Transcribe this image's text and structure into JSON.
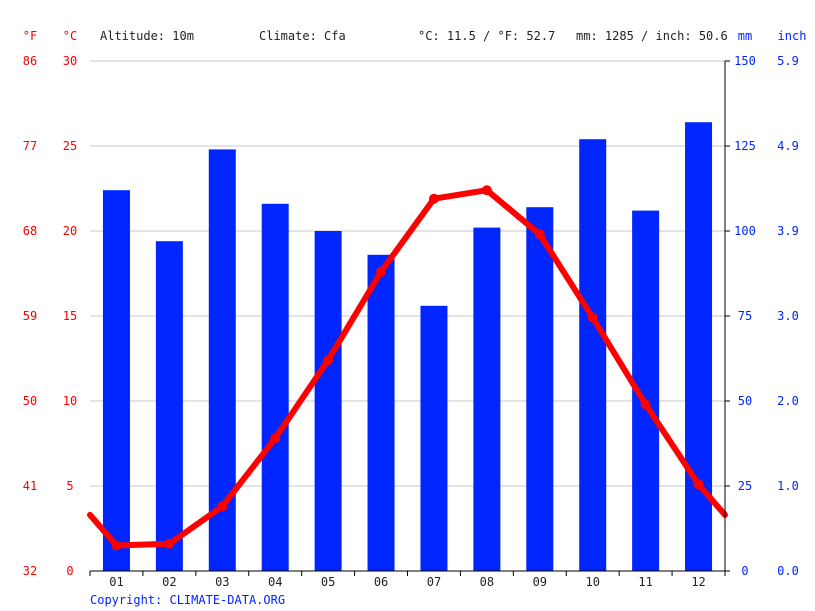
{
  "header": {
    "unit_f": "°F",
    "unit_c": "°C",
    "altitude": "Altitude: 10m",
    "climate": "Climate: Cfa",
    "avg_temp": "°C: 11.5 / °F: 52.7",
    "avg_precip": "mm: 1285 / inch: 50.6",
    "unit_mm": "mm",
    "unit_inch": "inch"
  },
  "footer": {
    "copyright": "Copyright: CLIMATE-DATA.ORG"
  },
  "colors": {
    "temperature": "#ff0000",
    "precipitation": "#0026ff",
    "grid": "#c8c8c8",
    "text": "#222222"
  },
  "chart_data": {
    "type": "bar",
    "categories": [
      "01",
      "02",
      "03",
      "04",
      "05",
      "06",
      "07",
      "08",
      "09",
      "10",
      "11",
      "12"
    ],
    "series": [
      {
        "axis": "right",
        "type": "bar",
        "unit": "mm",
        "values": [
          112,
          97,
          124,
          108,
          100,
          93,
          78,
          101,
          107,
          127,
          106,
          132
        ]
      },
      {
        "axis": "left",
        "type": "line",
        "unit": "°C",
        "values": [
          1.5,
          1.6,
          3.8,
          7.8,
          12.4,
          17.6,
          21.9,
          22.4,
          19.8,
          14.9,
          9.8,
          5.1
        ],
        "line_start": 3.3,
        "line_end": 3.3
      }
    ],
    "y_left_c": {
      "ticks": [
        "0",
        "5",
        "10",
        "15",
        "20",
        "25",
        "30"
      ],
      "ylim": [
        0,
        30
      ]
    },
    "y_left_f": {
      "ticks": [
        "32",
        "41",
        "50",
        "59",
        "68",
        "77",
        "86"
      ]
    },
    "y_right_mm": {
      "ticks": [
        "0",
        "25",
        "50",
        "75",
        "100",
        "125",
        "150"
      ],
      "ylim": [
        0,
        150
      ]
    },
    "y_right_inch": {
      "ticks": [
        "0.0",
        "1.0",
        "2.0",
        "3.0",
        "3.9",
        "4.9",
        "5.9"
      ]
    },
    "grid": true
  }
}
